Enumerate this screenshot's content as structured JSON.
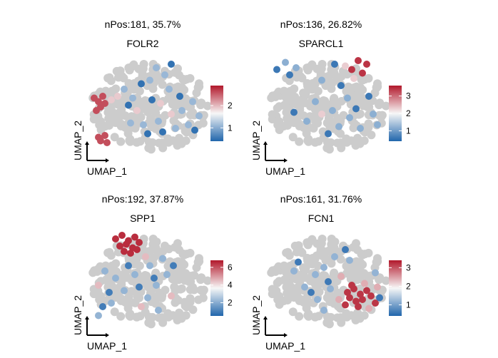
{
  "chart_data": [
    {
      "type": "scatter",
      "title": "nPos:181, 35.7%",
      "subtitle": "FOLR2",
      "xlabel": "UMAP_1",
      "ylabel": "UMAP_2",
      "colorbar": {
        "ticks": [
          1,
          2
        ],
        "range": [
          0.4,
          2.9
        ],
        "low": "#2166ac",
        "mid": "#f7f7f7",
        "high": "#b2182b"
      },
      "point_color_negative": "#cccccc",
      "groups": [
        {
          "level": 2.6,
          "points": [
            [
              -2.6,
              0.5
            ],
            [
              -2.4,
              0.3
            ],
            [
              -2.3,
              0.0
            ],
            [
              -2.5,
              -0.2
            ],
            [
              -2.1,
              0.2
            ],
            [
              -2.3,
              -1.9
            ],
            [
              -2.1,
              -1.6
            ],
            [
              -2.4,
              -1.7
            ],
            [
              -2.0,
              -2.0
            ],
            [
              -2.2,
              0.6
            ]
          ]
        },
        {
          "level": 1.9,
          "points": [
            [
              -1.8,
              0.4
            ],
            [
              -1.5,
              0.6
            ],
            [
              0.5,
              0.2
            ],
            [
              1.0,
              -0.4
            ],
            [
              -0.6,
              -0.2
            ]
          ]
        },
        {
          "level": 1.1,
          "points": [
            [
              -1.2,
              1.0
            ],
            [
              -0.8,
              0.5
            ],
            [
              0.0,
              1.5
            ],
            [
              0.3,
              2.2
            ],
            [
              0.9,
              1.0
            ],
            [
              1.5,
              -0.2
            ],
            [
              2.0,
              0.3
            ],
            [
              -0.3,
              -1.0
            ],
            [
              0.4,
              -0.8
            ],
            [
              1.2,
              -1.2
            ],
            [
              1.8,
              -1.0
            ],
            [
              -0.9,
              -0.9
            ],
            [
              0.7,
              1.8
            ],
            [
              2.3,
              -0.5
            ]
          ]
        },
        {
          "level": 0.5,
          "points": [
            [
              -1.0,
              0.1
            ],
            [
              0.1,
              0.4
            ],
            [
              0.6,
              -1.4
            ],
            [
              1.4,
              0.6
            ],
            [
              -0.4,
              1.3
            ],
            [
              2.1,
              -1.3
            ],
            [
              1.0,
              2.4
            ],
            [
              -0.1,
              -1.5
            ]
          ]
        }
      ]
    },
    {
      "type": "scatter",
      "title": "nPos:136, 26.82%",
      "subtitle": "SPARCL1",
      "xlabel": "UMAP_1",
      "ylabel": "UMAP_2",
      "colorbar": {
        "ticks": [
          1,
          2,
          3
        ],
        "range": [
          0.4,
          3.6
        ],
        "low": "#2166ac",
        "mid": "#f7f7f7",
        "high": "#b2182b"
      },
      "point_color_negative": "#cccccc",
      "groups": [
        {
          "level": 3.4,
          "points": [
            [
              1.4,
              2.6
            ],
            [
              1.8,
              2.4
            ],
            [
              1.1,
              2.1
            ],
            [
              1.6,
              1.9
            ]
          ]
        },
        {
          "level": 2.3,
          "points": [
            [
              0.8,
              2.3
            ],
            [
              1.2,
              1.6
            ],
            [
              -0.3,
              -0.4
            ]
          ]
        },
        {
          "level": 1.2,
          "points": [
            [
              -2.0,
              2.5
            ],
            [
              -1.5,
              2.2
            ],
            [
              -0.3,
              1.5
            ],
            [
              0.2,
              -0.2
            ],
            [
              0.5,
              -1.1
            ],
            [
              1.0,
              -0.6
            ],
            [
              1.5,
              -1.2
            ],
            [
              2.1,
              -0.4
            ],
            [
              -1.0,
              -0.8
            ],
            [
              -0.6,
              0.3
            ],
            [
              0.9,
              0.5
            ],
            [
              2.3,
              -1.0
            ]
          ]
        },
        {
          "level": 0.6,
          "points": [
            [
              -2.4,
              2.1
            ],
            [
              -1.8,
              1.8
            ],
            [
              0.0,
              -1.5
            ],
            [
              1.3,
              -0.1
            ],
            [
              -1.6,
              -0.3
            ],
            [
              0.6,
              1.2
            ],
            [
              1.9,
              0.6
            ],
            [
              0.3,
              2.4
            ]
          ]
        }
      ]
    },
    {
      "type": "scatter",
      "title": "nPos:192, 37.87%",
      "subtitle": "SPP1",
      "xlabel": "UMAP_1",
      "ylabel": "UMAP_2",
      "colorbar": {
        "ticks": [
          2,
          4,
          6
        ],
        "range": [
          0.5,
          6.8
        ],
        "low": "#2166ac",
        "mid": "#f7f7f7",
        "high": "#b2182b"
      },
      "point_color_negative": "#cccccc",
      "groups": [
        {
          "level": 6.5,
          "points": [
            [
              -1.6,
              2.4
            ],
            [
              -1.3,
              2.6
            ],
            [
              -1.0,
              2.3
            ],
            [
              -0.7,
              2.5
            ],
            [
              -1.4,
              2.0
            ],
            [
              -1.1,
              2.1
            ],
            [
              -0.8,
              1.9
            ],
            [
              -0.5,
              2.2
            ],
            [
              -1.2,
              1.7
            ],
            [
              -0.9,
              1.6
            ],
            [
              -0.6,
              1.8
            ]
          ]
        },
        {
          "level": 4.5,
          "points": [
            [
              -2.4,
              -0.2
            ],
            [
              -0.2,
              1.4
            ],
            [
              1.0,
              -0.8
            ],
            [
              -0.4,
              -1.4
            ]
          ]
        },
        {
          "level": 2.2,
          "points": [
            [
              -2.1,
              0.6
            ],
            [
              -1.6,
              0.2
            ],
            [
              -1.2,
              -0.5
            ],
            [
              -0.7,
              0.4
            ],
            [
              0.0,
              0.9
            ],
            [
              0.3,
              -0.2
            ],
            [
              0.6,
              1.3
            ],
            [
              -0.1,
              -0.9
            ],
            [
              -1.8,
              -1.2
            ],
            [
              0.8,
              0.4
            ],
            [
              -2.4,
              -1.9
            ],
            [
              0.4,
              -1.6
            ]
          ]
        },
        {
          "level": 1.0,
          "points": [
            [
              -1.9,
              -0.6
            ],
            [
              -1.0,
              0.9
            ],
            [
              0.2,
              0.2
            ],
            [
              -0.5,
              -0.3
            ],
            [
              1.1,
              0.9
            ],
            [
              -2.2,
              -1.4
            ]
          ]
        }
      ]
    },
    {
      "type": "scatter",
      "title": "nPos:161, 31.76%",
      "subtitle": "FCN1",
      "xlabel": "UMAP_1",
      "ylabel": "UMAP_2",
      "colorbar": {
        "ticks": [
          1,
          2,
          3
        ],
        "range": [
          0.4,
          3.4
        ],
        "low": "#2166ac",
        "mid": "#f7f7f7",
        "high": "#b2182b"
      },
      "point_color_negative": "#cccccc",
      "groups": [
        {
          "level": 3.2,
          "points": [
            [
              0.9,
              -0.6
            ],
            [
              1.2,
              -0.4
            ],
            [
              1.5,
              -0.7
            ],
            [
              1.8,
              -0.5
            ],
            [
              1.0,
              -0.9
            ],
            [
              1.3,
              -1.1
            ],
            [
              1.6,
              -1.0
            ],
            [
              2.0,
              -0.8
            ],
            [
              2.2,
              -1.2
            ],
            [
              1.1,
              -0.2
            ],
            [
              0.8,
              -1.3
            ],
            [
              1.4,
              -1.4
            ]
          ]
        },
        {
          "level": 2.4,
          "points": [
            [
              0.6,
              0.3
            ],
            [
              1.7,
              -0.1
            ],
            [
              2.3,
              -0.3
            ],
            [
              0.5,
              -1.0
            ],
            [
              1.9,
              -1.5
            ]
          ]
        },
        {
          "level": 1.2,
          "points": [
            [
              -0.6,
              0.4
            ],
            [
              -0.2,
              0.8
            ],
            [
              0.3,
              1.4
            ],
            [
              1.0,
              1.2
            ],
            [
              -1.1,
              -0.3
            ],
            [
              -0.5,
              -1.0
            ],
            [
              0.1,
              -0.4
            ],
            [
              -1.6,
              0.6
            ],
            [
              2.2,
              0.5
            ],
            [
              -0.2,
              -1.6
            ]
          ]
        },
        {
          "level": 0.6,
          "points": [
            [
              -1.4,
              1.1
            ],
            [
              0.0,
              0.0
            ],
            [
              0.8,
              1.8
            ],
            [
              -0.8,
              -0.6
            ],
            [
              2.4,
              -0.9
            ]
          ]
        }
      ]
    }
  ]
}
